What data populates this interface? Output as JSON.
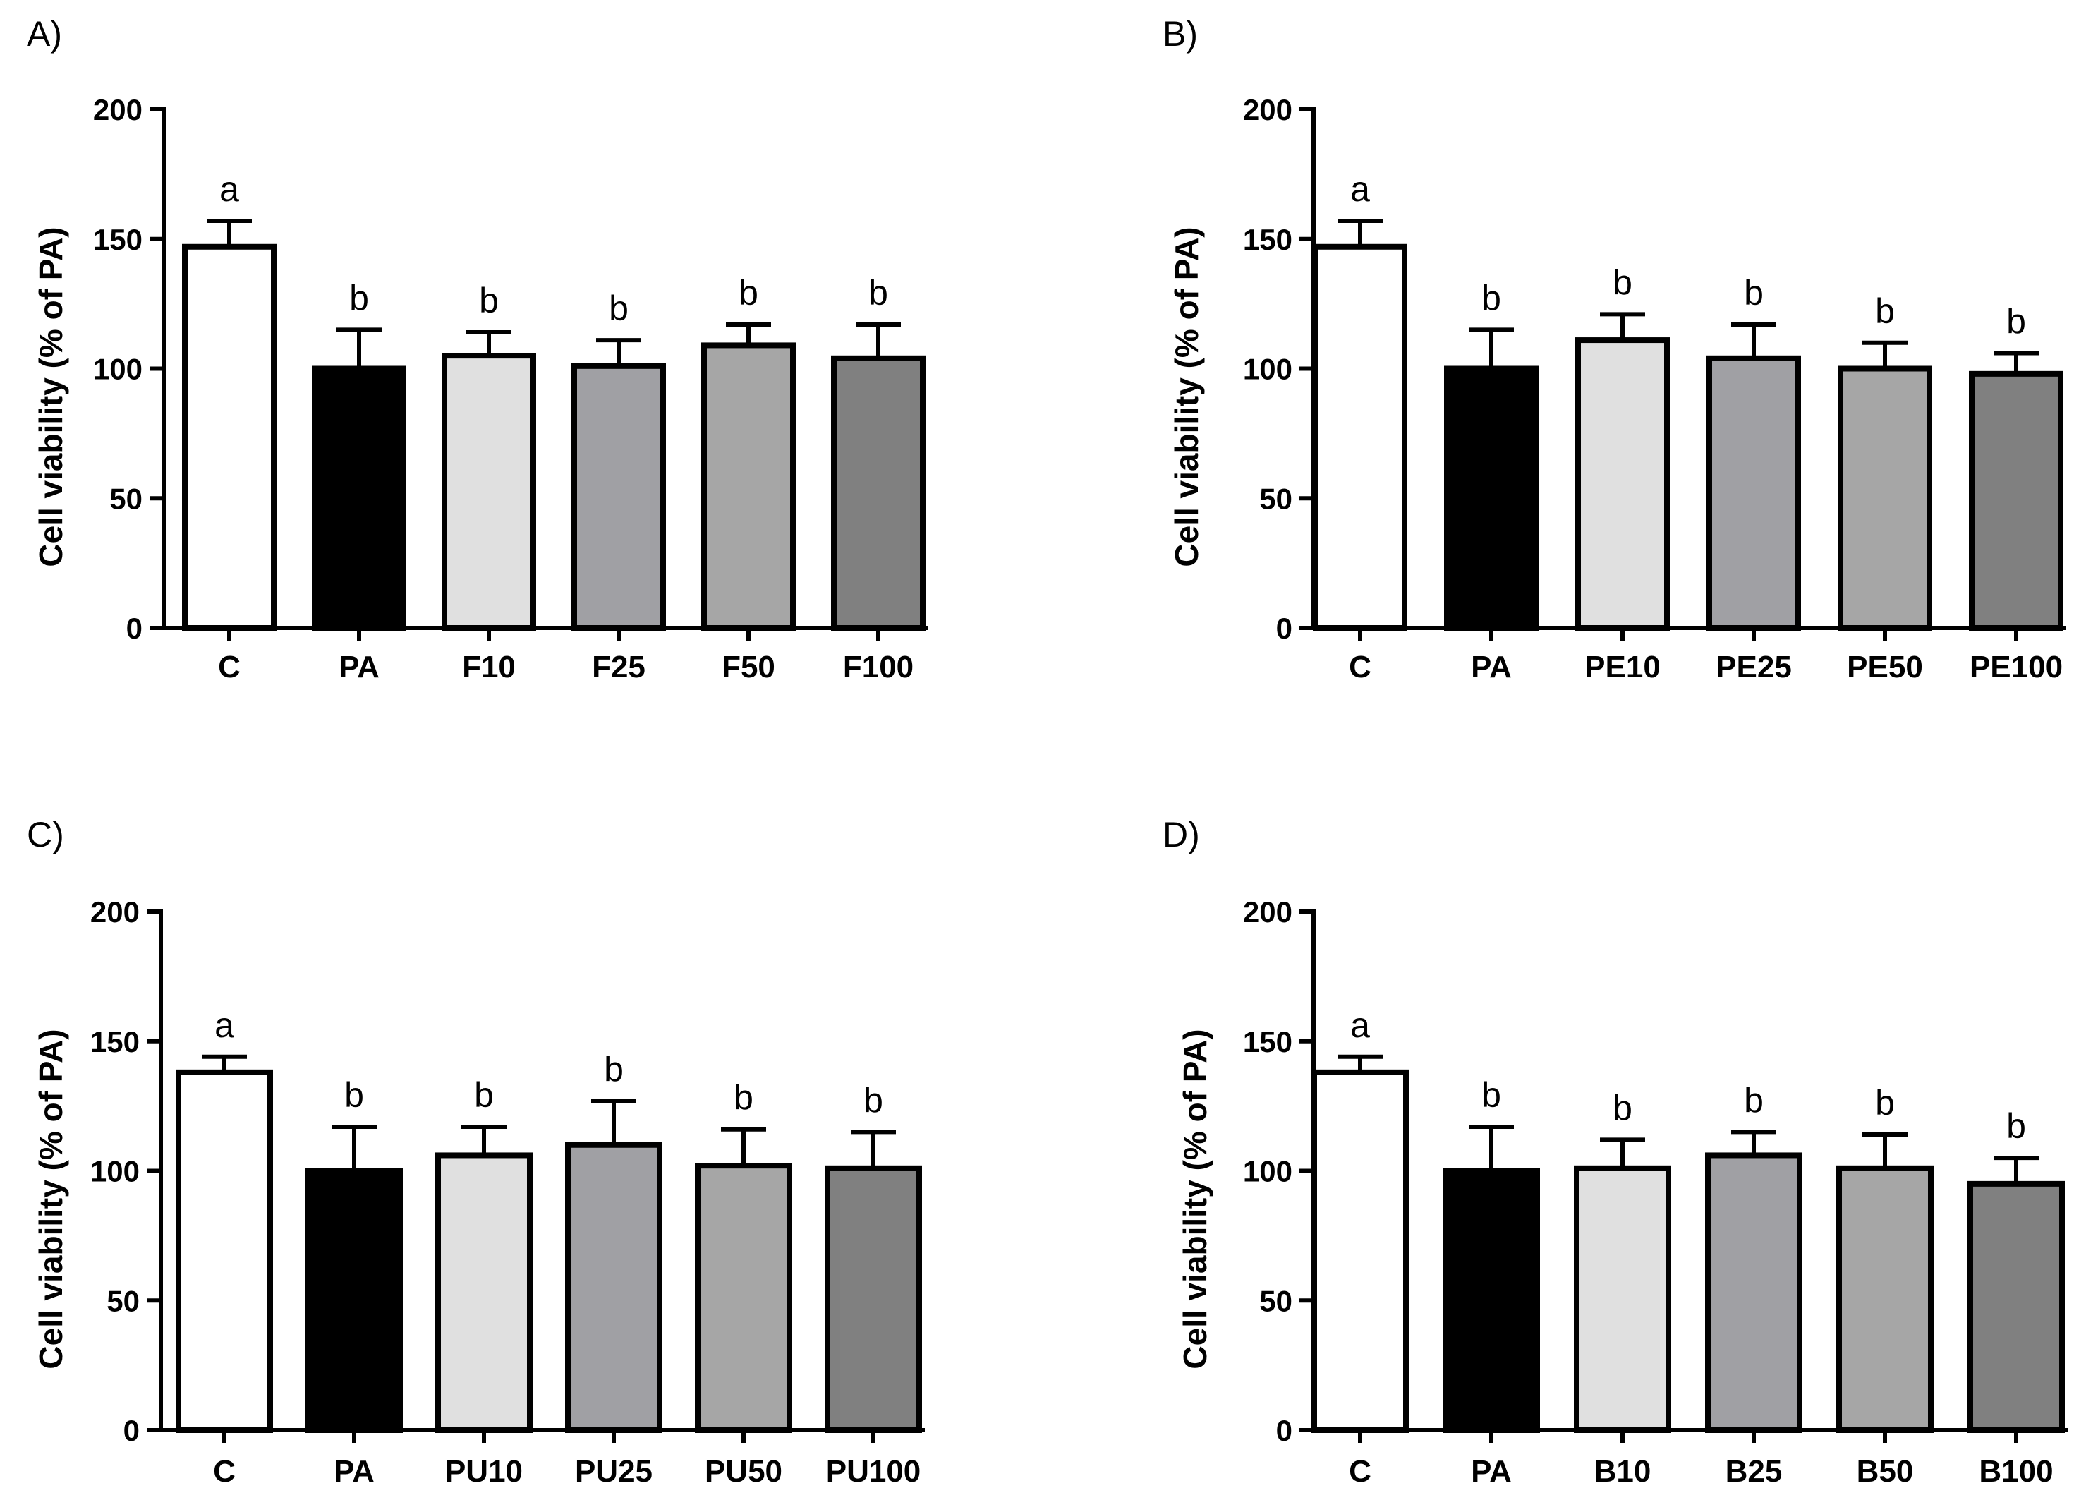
{
  "figure": {
    "colors": {
      "C": "#ffffff",
      "PA": "#000000",
      "dose10": "#e0e0e0",
      "dose25": "#a0a0a4",
      "dose50": "#a6a6a6",
      "dose100": "#808080",
      "stroke": "#000000"
    }
  },
  "chart_data": [
    {
      "type": "bar",
      "panel": "A)",
      "title": "",
      "xlabel": "",
      "ylabel": "Cell viability (% of PA)",
      "ylim": [
        0,
        200
      ],
      "yticks": [
        0,
        50,
        100,
        150,
        200
      ],
      "categories": [
        "C",
        "PA",
        "F10",
        "F25",
        "F50",
        "F100"
      ],
      "values": [
        147,
        100,
        105,
        101,
        109,
        104
      ],
      "errors": [
        10,
        15,
        9,
        10,
        8,
        13
      ],
      "significance": [
        "a",
        "b",
        "b",
        "b",
        "b",
        "b"
      ],
      "bar_colors": [
        "C",
        "PA",
        "dose10",
        "dose25",
        "dose50",
        "dose100"
      ]
    },
    {
      "type": "bar",
      "panel": "B)",
      "title": "",
      "xlabel": "",
      "ylabel": "Cell viability (% of PA)",
      "ylim": [
        0,
        200
      ],
      "yticks": [
        0,
        50,
        100,
        150,
        200
      ],
      "categories": [
        "C",
        "PA",
        "PE10",
        "PE25",
        "PE50",
        "PE100"
      ],
      "values": [
        147,
        100,
        111,
        104,
        100,
        98
      ],
      "errors": [
        10,
        15,
        10,
        13,
        10,
        8
      ],
      "significance": [
        "a",
        "b",
        "b",
        "b",
        "b",
        "b"
      ],
      "bar_colors": [
        "C",
        "PA",
        "dose10",
        "dose25",
        "dose50",
        "dose100"
      ]
    },
    {
      "type": "bar",
      "panel": "C)",
      "title": "",
      "xlabel": "",
      "ylabel": "Cell viability (% of PA)",
      "ylim": [
        0,
        200
      ],
      "yticks": [
        0,
        50,
        100,
        150,
        200
      ],
      "categories": [
        "C",
        "PA",
        "PU10",
        "PU25",
        "PU50",
        "PU100"
      ],
      "values": [
        138,
        100,
        106,
        110,
        102,
        101
      ],
      "errors": [
        6,
        17,
        11,
        17,
        14,
        14
      ],
      "significance": [
        "a",
        "b",
        "b",
        "b",
        "b",
        "b"
      ],
      "bar_colors": [
        "C",
        "PA",
        "dose10",
        "dose25",
        "dose50",
        "dose100"
      ]
    },
    {
      "type": "bar",
      "panel": "D)",
      "title": "",
      "xlabel": "",
      "ylabel": "Cell viability (% of PA)",
      "ylim": [
        0,
        200
      ],
      "yticks": [
        0,
        50,
        100,
        150,
        200
      ],
      "categories": [
        "C",
        "PA",
        "B10",
        "B25",
        "B50",
        "B100"
      ],
      "values": [
        138,
        100,
        101,
        106,
        101,
        95
      ],
      "errors": [
        6,
        17,
        11,
        9,
        13,
        10
      ],
      "significance": [
        "a",
        "b",
        "b",
        "b",
        "b",
        "b"
      ],
      "bar_colors": [
        "C",
        "PA",
        "dose10",
        "dose25",
        "dose50",
        "dose100"
      ]
    }
  ]
}
